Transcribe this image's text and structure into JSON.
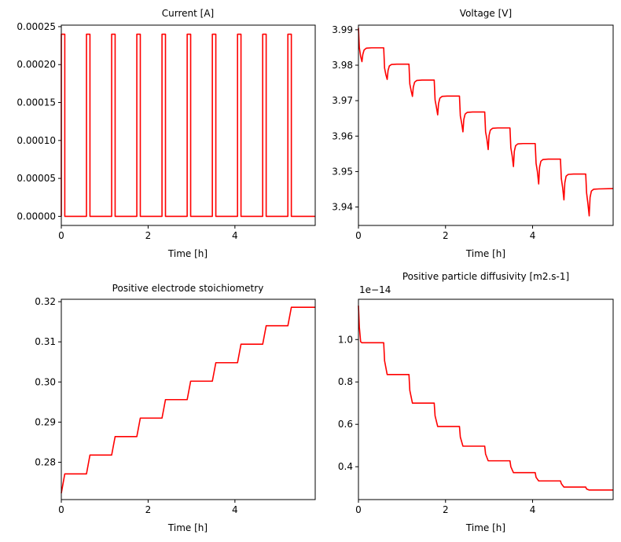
{
  "figure": {
    "background": "#ffffff",
    "line_color": "#ff0000"
  },
  "chart_data": [
    {
      "type": "line",
      "title": "Current [A]",
      "xlabel": "Time [h]",
      "ylabel": "",
      "xlim": [
        0,
        5.85
      ],
      "ylim": [
        -1.2e-05,
        0.000252
      ],
      "x_ticks": [
        0,
        2,
        4
      ],
      "x_tick_labels": [
        "0",
        "2",
        "4"
      ],
      "y_ticks": [
        0,
        5e-05,
        0.0001,
        0.00015,
        0.0002,
        0.00025
      ],
      "y_tick_labels": [
        "0.00000",
        "0.00005",
        "0.00010",
        "0.00015",
        "0.00020",
        "0.00025"
      ],
      "offset_label": "",
      "series": [
        {
          "name": "Current",
          "x": [
            0,
            0.0,
            0.08,
            0.08,
            0.58,
            0.58,
            0.66,
            0.66,
            1.16,
            1.16,
            1.24,
            1.24,
            1.74,
            1.74,
            1.82,
            1.82,
            2.32,
            2.32,
            2.4,
            2.4,
            2.9,
            2.9,
            2.98,
            2.98,
            3.48,
            3.48,
            3.56,
            3.56,
            4.06,
            4.06,
            4.14,
            4.14,
            4.64,
            4.64,
            4.72,
            4.72,
            5.22,
            5.22,
            5.3,
            5.3,
            5.85
          ],
          "y": [
            0,
            0.00024,
            0.00024,
            0,
            0,
            0.00024,
            0.00024,
            0,
            0,
            0.00024,
            0.00024,
            0,
            0,
            0.00024,
            0.00024,
            0,
            0,
            0.00024,
            0.00024,
            0,
            0,
            0.00024,
            0.00024,
            0,
            0,
            0.00024,
            0.00024,
            0,
            0,
            0.00024,
            0.00024,
            0,
            0,
            0.00024,
            0.00024,
            0,
            0,
            0.00024,
            0.00024,
            0,
            0
          ]
        }
      ]
    },
    {
      "type": "line",
      "title": "Voltage [V]",
      "xlabel": "Time [h]",
      "ylabel": "",
      "xlim": [
        0,
        5.85
      ],
      "ylim": [
        3.9348,
        3.9913
      ],
      "x_ticks": [
        0,
        2,
        4
      ],
      "x_tick_labels": [
        "0",
        "2",
        "4"
      ],
      "y_ticks": [
        3.94,
        3.95,
        3.96,
        3.97,
        3.98,
        3.99
      ],
      "y_tick_labels": [
        "3.94",
        "3.95",
        "3.96",
        "3.97",
        "3.98",
        "3.99"
      ],
      "offset_label": "",
      "series": [
        {
          "name": "Voltage",
          "x": [
            0,
            0.02,
            0.05,
            0.08,
            0.1,
            0.13,
            0.18,
            0.3,
            0.58,
            0.6,
            0.63,
            0.66,
            0.68,
            0.71,
            0.76,
            0.88,
            1.16,
            1.18,
            1.21,
            1.24,
            1.26,
            1.29,
            1.34,
            1.46,
            1.74,
            1.76,
            1.79,
            1.82,
            1.84,
            1.87,
            1.92,
            2.04,
            2.32,
            2.34,
            2.37,
            2.4,
            2.42,
            2.45,
            2.5,
            2.62,
            2.9,
            2.92,
            2.95,
            2.98,
            3.0,
            3.03,
            3.08,
            3.2,
            3.48,
            3.5,
            3.53,
            3.56,
            3.58,
            3.61,
            3.66,
            3.78,
            4.06,
            4.08,
            4.11,
            4.14,
            4.16,
            4.19,
            4.24,
            4.36,
            4.64,
            4.66,
            4.69,
            4.72,
            4.74,
            4.77,
            4.82,
            4.94,
            5.22,
            5.24,
            5.27,
            5.3,
            5.32,
            5.35,
            5.4,
            5.52,
            5.85
          ],
          "y": [
            3.9905,
            3.985,
            3.9825,
            3.981,
            3.983,
            3.9843,
            3.9848,
            3.9849,
            3.9849,
            3.9792,
            3.9773,
            3.976,
            3.9785,
            3.9798,
            3.9802,
            3.9803,
            3.9803,
            3.9747,
            3.9728,
            3.9712,
            3.9738,
            3.9752,
            3.9757,
            3.9758,
            3.9758,
            3.9702,
            3.9682,
            3.966,
            3.9692,
            3.9707,
            3.9712,
            3.9713,
            3.9713,
            3.9657,
            3.9637,
            3.9612,
            3.9647,
            3.9662,
            3.9667,
            3.9668,
            3.9668,
            3.9612,
            3.9592,
            3.9562,
            3.9602,
            3.9617,
            3.9622,
            3.9623,
            3.9623,
            3.9567,
            3.9545,
            3.9514,
            3.9557,
            3.9573,
            3.9578,
            3.9579,
            3.9579,
            3.9523,
            3.95,
            3.9465,
            3.9512,
            3.9529,
            3.9534,
            3.9535,
            3.9535,
            3.948,
            3.9455,
            3.942,
            3.9468,
            3.9487,
            3.9492,
            3.9493,
            3.9493,
            3.944,
            3.941,
            3.9375,
            3.9427,
            3.9445,
            3.945,
            3.9451,
            3.9452
          ]
        }
      ]
    },
    {
      "type": "line",
      "title": "Positive electrode stoichiometry",
      "xlabel": "Time [h]",
      "ylabel": "",
      "xlim": [
        0,
        5.85
      ],
      "ylim": [
        0.2707,
        0.3206
      ],
      "x_ticks": [
        0,
        2,
        4
      ],
      "x_tick_labels": [
        "0",
        "2",
        "4"
      ],
      "y_ticks": [
        0.28,
        0.29,
        0.3,
        0.31,
        0.32
      ],
      "y_tick_labels": [
        "0.28",
        "0.29",
        "0.30",
        "0.31",
        "0.32"
      ],
      "offset_label": "",
      "series": [
        {
          "name": "Stoichiometry",
          "x": [
            0,
            0.08,
            0.58,
            0.66,
            1.16,
            1.24,
            1.74,
            1.82,
            2.32,
            2.4,
            2.9,
            2.98,
            3.48,
            3.56,
            4.06,
            4.14,
            4.64,
            4.72,
            5.22,
            5.3,
            5.85
          ],
          "y": [
            0.2723,
            0.2771,
            0.2771,
            0.2818,
            0.2818,
            0.2864,
            0.2864,
            0.291,
            0.291,
            0.2956,
            0.2956,
            0.3002,
            0.3002,
            0.3048,
            0.3048,
            0.3094,
            0.3094,
            0.314,
            0.314,
            0.3186,
            0.3186
          ]
        }
      ]
    },
    {
      "type": "line",
      "title": "Positive particle diffusivity [m2.s-1]",
      "xlabel": "Time [h]",
      "ylabel": "",
      "xlim": [
        0,
        5.85
      ],
      "ylim": [
        0.245,
        1.19
      ],
      "x_ticks": [
        0,
        2,
        4
      ],
      "x_tick_labels": [
        "0",
        "2",
        "4"
      ],
      "y_ticks": [
        0.4,
        0.6,
        0.8,
        1.0
      ],
      "y_tick_labels": [
        "0.4",
        "0.6",
        "0.8",
        "1.0"
      ],
      "offset_label": "1e−14",
      "series": [
        {
          "name": "Diffusivity",
          "x": [
            0,
            0.02,
            0.05,
            0.08,
            0.58,
            0.6,
            0.66,
            1.16,
            1.18,
            1.24,
            1.74,
            1.76,
            1.82,
            2.32,
            2.34,
            2.4,
            2.9,
            2.92,
            2.98,
            3.48,
            3.5,
            3.56,
            4.06,
            4.08,
            4.14,
            4.64,
            4.66,
            4.72,
            5.22,
            5.24,
            5.3,
            5.85
          ],
          "y": [
            1.16,
            1.06,
            0.99,
            0.985,
            0.985,
            0.9,
            0.835,
            0.835,
            0.76,
            0.7,
            0.7,
            0.64,
            0.59,
            0.59,
            0.54,
            0.497,
            0.497,
            0.46,
            0.428,
            0.428,
            0.4,
            0.372,
            0.372,
            0.35,
            0.333,
            0.333,
            0.32,
            0.304,
            0.304,
            0.295,
            0.29,
            0.29
          ]
        }
      ]
    }
  ]
}
